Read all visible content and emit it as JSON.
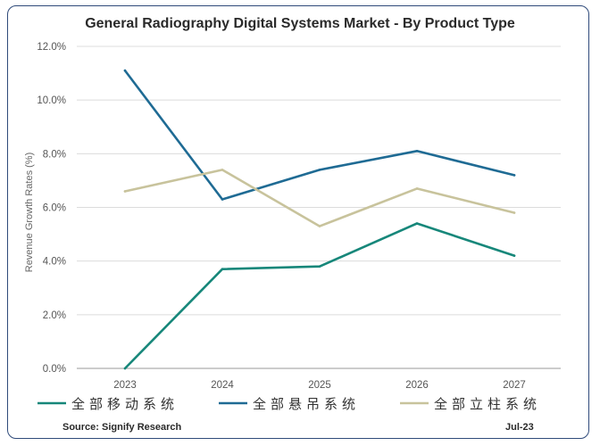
{
  "chart_data": {
    "type": "line",
    "title": "General Radiography Digital Systems Market - By Product Type",
    "ylabel": "Revenue Growth Rates (%)",
    "xlabel": "",
    "x": [
      "2023",
      "2024",
      "2025",
      "2026",
      "2027"
    ],
    "y_ticks": [
      "0.0%",
      "2.0%",
      "4.0%",
      "6.0%",
      "8.0%",
      "10.0%",
      "12.0%"
    ],
    "ylim": [
      0,
      12
    ],
    "grid": "horizontal",
    "legend_position": "bottom",
    "series": [
      {
        "name": "全部移动系统",
        "color": "#17877a",
        "values": [
          0.0,
          3.7,
          3.8,
          5.4,
          4.2
        ]
      },
      {
        "name": "全部悬吊系统",
        "color": "#1f6b94",
        "values": [
          11.1,
          6.3,
          7.4,
          8.1,
          7.2
        ]
      },
      {
        "name": "全部立柱系统",
        "color": "#c8c39c",
        "values": [
          6.6,
          7.4,
          5.3,
          6.7,
          5.8
        ]
      }
    ]
  },
  "footer": {
    "source": "Source: Signify Research",
    "date": "Jul-23"
  }
}
